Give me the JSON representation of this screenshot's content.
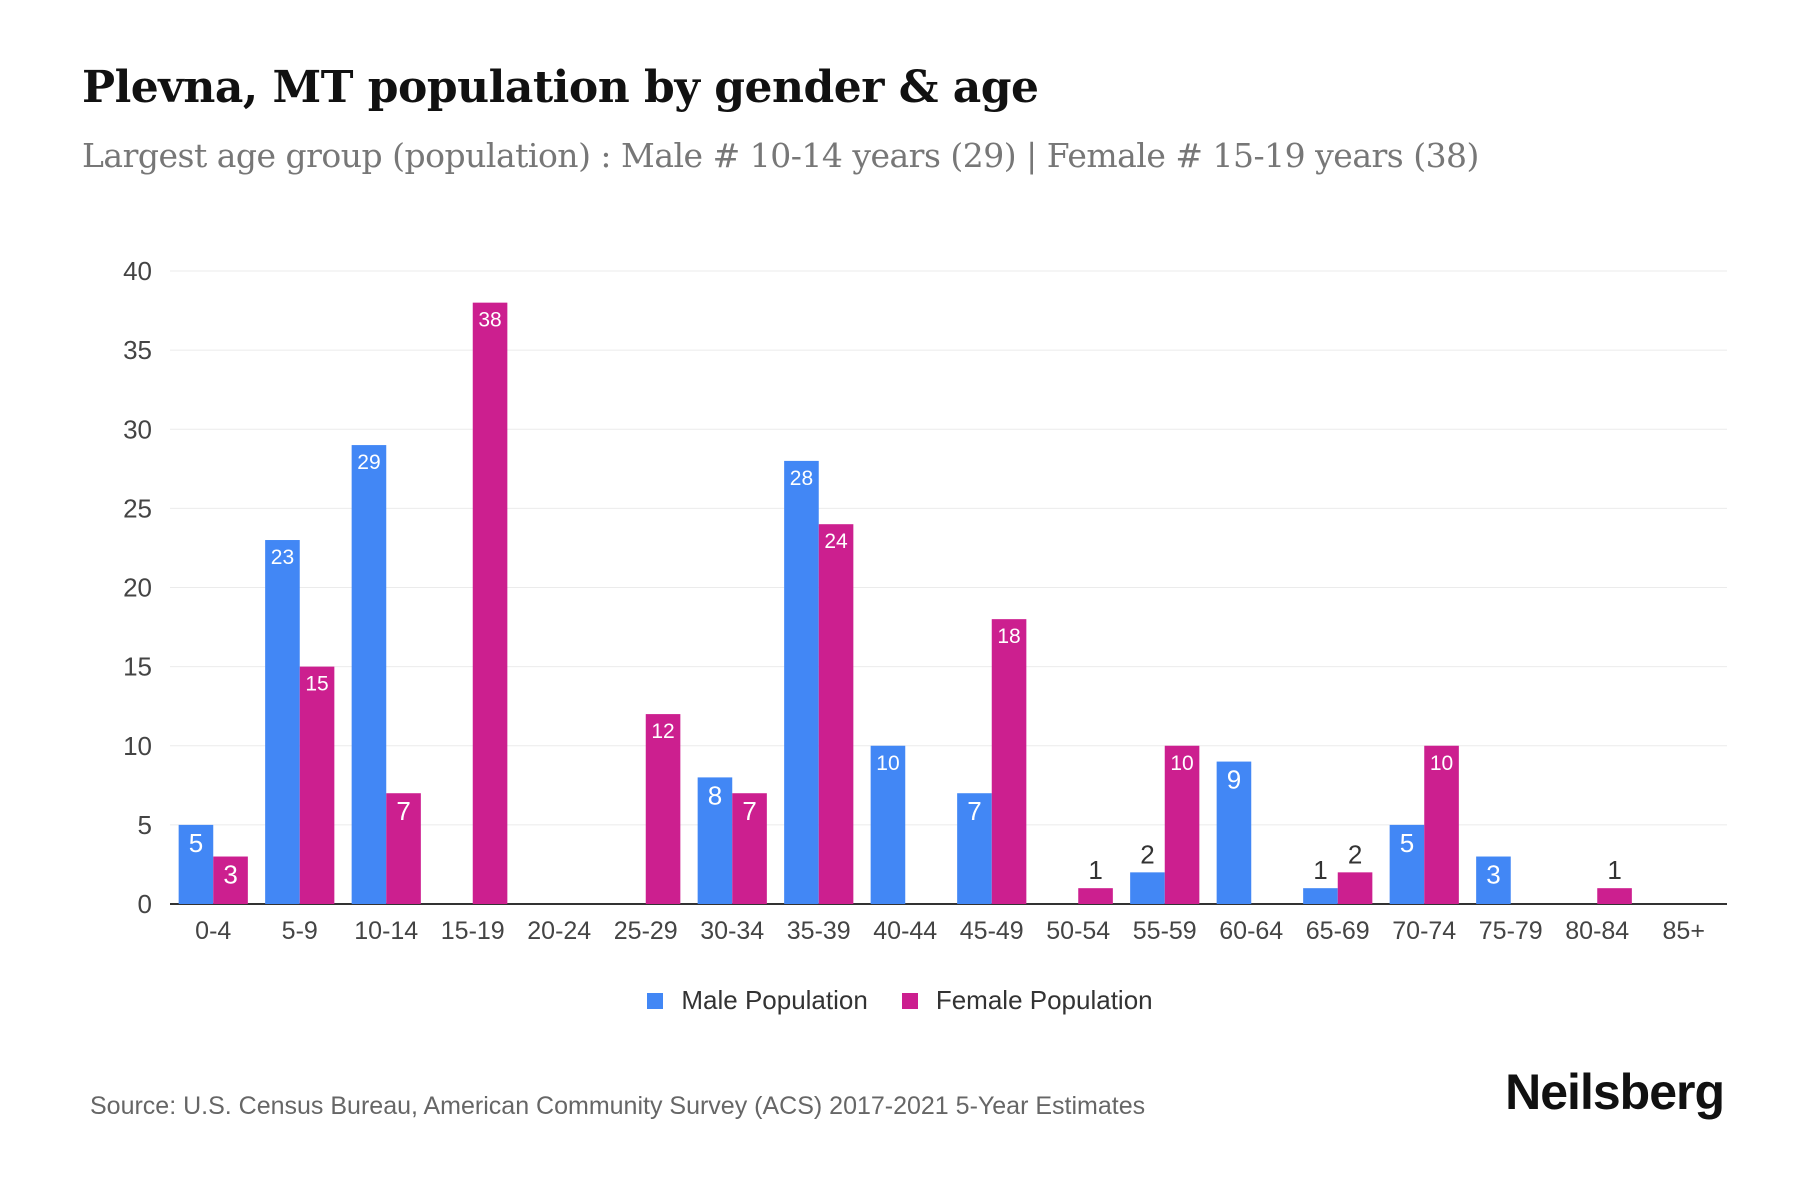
{
  "header": {
    "title": "Plevna, MT population by gender & age",
    "subtitle": "Largest age group (population) : Male # 10-14 years (29) | Female # 15-19 years (38)"
  },
  "chart_data": {
    "type": "bar",
    "categories": [
      "0-4",
      "5-9",
      "10-14",
      "15-19",
      "20-24",
      "25-29",
      "30-34",
      "35-39",
      "40-44",
      "45-49",
      "50-54",
      "55-59",
      "60-64",
      "65-69",
      "70-74",
      "75-79",
      "80-84",
      "85+"
    ],
    "series": [
      {
        "name": "Male Population",
        "color": "#4287f5",
        "values": [
          5,
          23,
          29,
          0,
          0,
          0,
          8,
          28,
          10,
          7,
          0,
          2,
          9,
          1,
          5,
          3,
          0,
          0
        ]
      },
      {
        "name": "Female Population",
        "color": "#cc1f8f",
        "values": [
          3,
          15,
          7,
          38,
          0,
          12,
          7,
          24,
          0,
          18,
          1,
          10,
          0,
          2,
          10,
          0,
          1,
          0
        ]
      }
    ],
    "ylim": [
      0,
      40
    ],
    "yticks": [
      0,
      5,
      10,
      15,
      20,
      25,
      30,
      35,
      40
    ],
    "grid": true,
    "legend_position": "bottom",
    "xlabel": "",
    "ylabel": ""
  },
  "footer": {
    "source": "Source: U.S. Census Bureau, American Community Survey (ACS) 2017-2021 5-Year Estimates",
    "logo": "Neilsberg"
  }
}
